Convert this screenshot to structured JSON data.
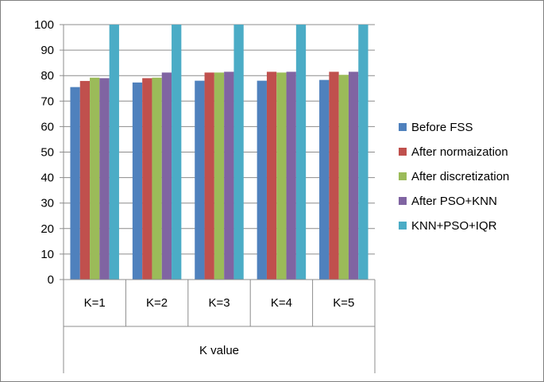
{
  "chart_data": {
    "type": "bar",
    "xlabel": "K value",
    "ylabel": "",
    "ylim": [
      0,
      100
    ],
    "yticks": [
      0,
      10,
      20,
      30,
      40,
      50,
      60,
      70,
      80,
      90,
      100
    ],
    "grid": true,
    "legend_position": "right",
    "categories": [
      "K=1",
      "K=2",
      "K=3",
      "K=4",
      "K=5"
    ],
    "series": [
      {
        "name": "Before FSS",
        "color": "#4f81bd",
        "values": [
          75.5,
          77.3,
          78.0,
          78.0,
          78.3
        ]
      },
      {
        "name": "After normaization",
        "color": "#c0504d",
        "values": [
          77.9,
          79.0,
          81.2,
          81.5,
          81.5
        ]
      },
      {
        "name": "After discretization",
        "color": "#9bbb59",
        "values": [
          79.2,
          79.2,
          81.2,
          81.2,
          80.3
        ]
      },
      {
        "name": "After PSO+KNN",
        "color": "#8064a2",
        "values": [
          79.0,
          81.2,
          81.5,
          81.5,
          81.5
        ]
      },
      {
        "name": "KNN+PSO+IQR",
        "color": "#4bacc6",
        "values": [
          100,
          100,
          100,
          100,
          100
        ]
      }
    ]
  }
}
